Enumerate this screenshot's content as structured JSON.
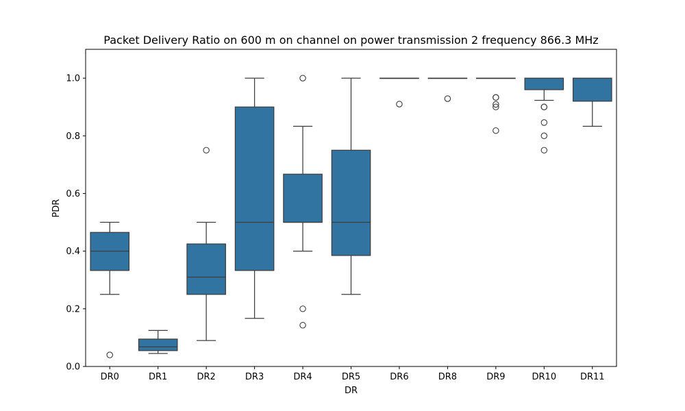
{
  "chart_data": {
    "type": "box",
    "title": "Packet Delivery Ratio on 600 m on channel on power transmission 2 frequency 866.3 MHz",
    "xlabel": "DR",
    "ylabel": "PDR",
    "ylim": [
      0,
      1.1
    ],
    "yticks": [
      "0.0",
      "0.2",
      "0.4",
      "0.6",
      "0.8",
      "1.0"
    ],
    "grid": false,
    "box_color": "#3274a1",
    "edge_color": "#3d3d3d",
    "boxes": [
      {
        "category": "DR0",
        "whisker_low": 0.25,
        "q1": 0.333,
        "median": 0.4,
        "q3": 0.465,
        "whisker_high": 0.5,
        "outliers": [
          0.04
        ]
      },
      {
        "category": "DR1",
        "whisker_low": 0.045,
        "q1": 0.055,
        "median": 0.068,
        "q3": 0.095,
        "whisker_high": 0.125,
        "outliers": []
      },
      {
        "category": "DR2",
        "whisker_low": 0.09,
        "q1": 0.25,
        "median": 0.31,
        "q3": 0.425,
        "whisker_high": 0.5,
        "outliers": [
          0.75
        ]
      },
      {
        "category": "DR3",
        "whisker_low": 0.167,
        "q1": 0.333,
        "median": 0.5,
        "q3": 0.9,
        "whisker_high": 1.0,
        "outliers": []
      },
      {
        "category": "DR4",
        "whisker_low": 0.4,
        "q1": 0.5,
        "median": 0.5,
        "q3": 0.667,
        "whisker_high": 0.833,
        "outliers": [
          1.0,
          0.2,
          0.143
        ]
      },
      {
        "category": "DR5",
        "whisker_low": 0.25,
        "q1": 0.385,
        "median": 0.5,
        "q3": 0.75,
        "whisker_high": 1.0,
        "outliers": []
      },
      {
        "category": "DR6",
        "whisker_low": 1.0,
        "q1": 1.0,
        "median": 1.0,
        "q3": 1.0,
        "whisker_high": 1.0,
        "outliers": [
          0.91
        ]
      },
      {
        "category": "DR8",
        "whisker_low": 1.0,
        "q1": 1.0,
        "median": 1.0,
        "q3": 1.0,
        "whisker_high": 1.0,
        "outliers": [
          0.929
        ]
      },
      {
        "category": "DR9",
        "whisker_low": 1.0,
        "q1": 1.0,
        "median": 1.0,
        "q3": 1.0,
        "whisker_high": 1.0,
        "outliers": [
          0.933,
          0.933,
          0.909,
          0.9,
          0.818
        ]
      },
      {
        "category": "DR10",
        "whisker_low": 0.923,
        "q1": 0.96,
        "median": 1.0,
        "q3": 1.0,
        "whisker_high": 1.0,
        "outliers": [
          0.9,
          0.9,
          0.846,
          0.8,
          0.75
        ]
      },
      {
        "category": "DR11",
        "whisker_low": 0.833,
        "q1": 0.92,
        "median": 1.0,
        "q3": 1.0,
        "whisker_high": 1.0,
        "outliers": []
      }
    ]
  }
}
